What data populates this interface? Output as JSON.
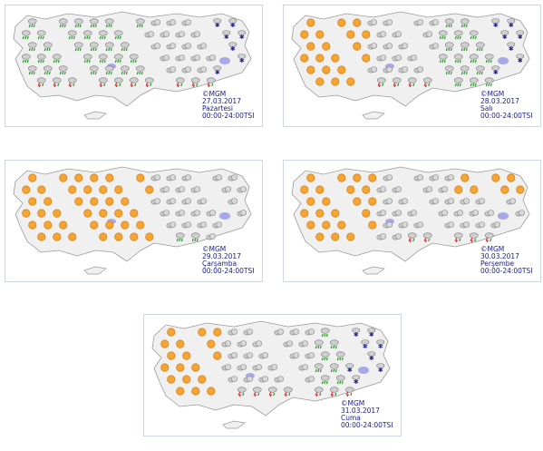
{
  "maps": [
    {
      "credit": "©MGM",
      "date": "27.03.2017",
      "day": "Pazartesi",
      "period": "00:00-24:00TSI"
    },
    {
      "credit": "©MGM",
      "date": "28.03.2017",
      "day": "Salı",
      "period": "00:00-24:00TSI"
    },
    {
      "credit": "©MGM",
      "date": "29.03.2017",
      "day": "Çarşamba",
      "period": "00:00-24:00TSI"
    },
    {
      "credit": "©MGM",
      "date": "30.03.2017",
      "day": "Perşembe",
      "period": "00:00-24:00TSI"
    },
    {
      "credit": "©MGM",
      "date": "31.03.2017",
      "day": "Cuma",
      "period": "00:00-24:00TSI"
    }
  ]
}
